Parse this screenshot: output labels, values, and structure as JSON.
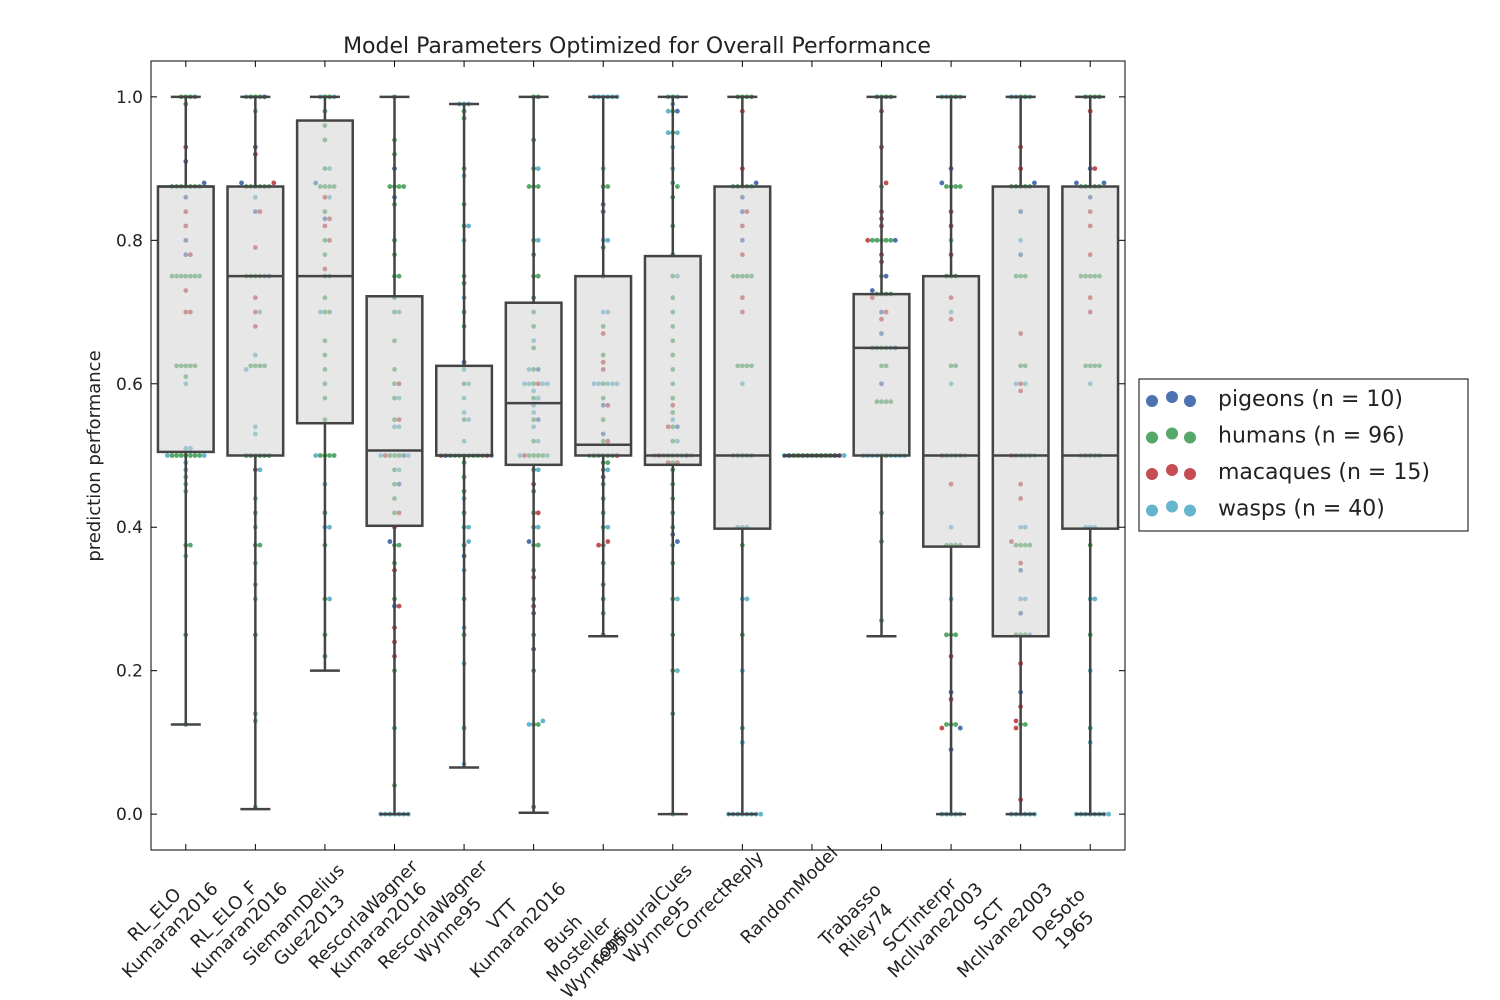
{
  "chart_data": {
    "type": "box",
    "title": "Model Parameters Optimized for Overall Performance",
    "xlabel": "",
    "ylabel": "prediction performance",
    "ylim": [
      -0.05,
      1.05
    ],
    "yticks": [
      0.0,
      0.2,
      0.4,
      0.6,
      0.8,
      1.0
    ],
    "ytick_labels": [
      "0.0",
      "0.2",
      "0.4",
      "0.6",
      "0.8",
      "1.0"
    ],
    "grid": false,
    "legend_position": "right, outside",
    "categories": [
      "RL_ELO\nKumaran2016",
      "RL_ELO_F\nKumaran2016",
      "SiemannDelius\nGuez2013",
      "RescorlaWagner\nKumaran2016",
      "RescorlaWagner\nWynne95",
      "VTT\nKumaran2016",
      "Bush\nMosteller\nWynne95",
      "configuralCues\nWynne95",
      "CorrectReply",
      "RandomModel",
      "Trabasso\nRiley74",
      "SCTinterpr\nMcIlvane2003",
      "SCT\nMcIlvane2003",
      "DeSoto\n1965"
    ],
    "boxes": [
      {
        "min": 0.125,
        "q1": 0.505,
        "median": 0.875,
        "q3": 0.875,
        "max": 1.0
      },
      {
        "min": 0.007,
        "q1": 0.5,
        "median": 0.75,
        "q3": 0.875,
        "max": 1.0
      },
      {
        "min": 0.2,
        "q1": 0.545,
        "median": 0.75,
        "q3": 0.967,
        "max": 1.0
      },
      {
        "min": 0.0,
        "q1": 0.402,
        "median": 0.507,
        "q3": 0.722,
        "max": 1.0
      },
      {
        "min": 0.065,
        "q1": 0.5,
        "median": 0.5,
        "q3": 0.625,
        "max": 0.99
      },
      {
        "min": 0.002,
        "q1": 0.487,
        "median": 0.573,
        "q3": 0.713,
        "max": 1.0
      },
      {
        "min": 0.248,
        "q1": 0.5,
        "median": 0.515,
        "q3": 0.75,
        "max": 1.0
      },
      {
        "min": 0.0,
        "q1": 0.487,
        "median": 0.5,
        "q3": 0.778,
        "max": 1.0
      },
      {
        "min": 0.0,
        "q1": 0.398,
        "median": 0.5,
        "q3": 0.875,
        "max": 1.0
      },
      {
        "min": 0.5,
        "q1": 0.5,
        "median": 0.5,
        "q3": 0.5,
        "max": 0.5
      },
      {
        "min": 0.248,
        "q1": 0.5,
        "median": 0.65,
        "q3": 0.725,
        "max": 1.0
      },
      {
        "min": 0.0,
        "q1": 0.373,
        "median": 0.5,
        "q3": 0.75,
        "max": 1.0
      },
      {
        "min": 0.0,
        "q1": 0.248,
        "median": 0.5,
        "q3": 0.875,
        "max": 1.0
      },
      {
        "min": 0.0,
        "q1": 0.398,
        "median": 0.5,
        "q3": 0.875,
        "max": 1.0
      }
    ],
    "series": [
      {
        "name": "pigeons (n = 10)",
        "color": "#4c72b0"
      },
      {
        "name": "humans (n = 96)",
        "color": "#55a868"
      },
      {
        "name": "macaques (n = 15)",
        "color": "#c44e52"
      },
      {
        "name": "wasps (n = 40)",
        "color": "#64b5cd"
      }
    ],
    "swarm_points": [
      {
        "model": 0,
        "human": [
          1.0,
          1.0,
          1.0,
          1.0,
          0.99,
          0.875,
          0.875,
          0.875,
          0.875,
          0.875,
          0.875,
          0.75,
          0.75,
          0.75,
          0.75,
          0.75,
          0.75,
          0.625,
          0.625,
          0.625,
          0.625,
          0.625,
          0.5,
          0.5,
          0.5,
          0.5,
          0.5,
          0.5,
          0.5,
          0.375,
          0.375,
          0.25,
          0.875,
          0.75,
          0.61,
          0.125
        ],
        "pigeon": [
          0.91,
          0.88,
          0.8,
          0.78,
          0.86
        ],
        "macaque": [
          0.93,
          0.84,
          0.82,
          0.78,
          0.73,
          0.7,
          0.7
        ],
        "wasp": [
          0.6,
          0.51,
          0.51,
          0.5,
          0.5,
          0.49,
          0.48,
          0.47,
          0.46,
          0.45,
          0.36
        ]
      },
      {
        "model": 1,
        "human": [
          1.0,
          1.0,
          1.0,
          0.875,
          0.875,
          0.875,
          0.875,
          0.875,
          0.75,
          0.75,
          0.75,
          0.75,
          0.75,
          0.625,
          0.625,
          0.625,
          0.625,
          0.5,
          0.5,
          0.5,
          0.5,
          0.5,
          0.5,
          0.375,
          0.375,
          0.25,
          0.875
        ],
        "pigeon": [
          1.0,
          0.93,
          0.88,
          0.84,
          0.75
        ],
        "macaque": [
          0.92,
          0.88,
          0.84,
          0.79,
          0.72,
          0.7,
          0.68,
          0.48
        ],
        "wasp": [
          1.0,
          0.98,
          0.86,
          0.7,
          0.64,
          0.62,
          0.54,
          0.53,
          0.48,
          0.44,
          0.42,
          0.4,
          0.35,
          0.32,
          0.3,
          0.14,
          0.13,
          0.01
        ]
      },
      {
        "model": 2,
        "human": [
          1.0,
          1.0,
          0.98,
          0.96,
          0.94,
          0.9,
          0.875,
          0.875,
          0.875,
          0.875,
          0.84,
          0.8,
          0.78,
          0.75,
          0.75,
          0.72,
          0.7,
          0.7,
          0.66,
          0.64,
          0.62,
          0.6,
          0.58,
          0.55,
          0.5,
          0.5,
          0.5,
          0.5,
          0.42,
          0.375,
          0.3,
          0.25,
          0.22
        ],
        "pigeon": [
          0.88,
          0.83
        ],
        "macaque": [
          0.86,
          0.83,
          0.82,
          0.8,
          0.76
        ],
        "wasp": [
          1.0,
          1.0,
          0.9,
          0.86,
          0.7,
          0.5,
          0.46,
          0.4,
          0.4,
          0.3
        ]
      },
      {
        "model": 3,
        "human": [
          1.0,
          0.94,
          0.92,
          0.875,
          0.875,
          0.875,
          0.875,
          0.85,
          0.8,
          0.78,
          0.75,
          0.75,
          0.72,
          0.7,
          0.66,
          0.62,
          0.6,
          0.58,
          0.55,
          0.5,
          0.5,
          0.5,
          0.48,
          0.46,
          0.44,
          0.42,
          0.375,
          0.375,
          0.35,
          0.3,
          0.2,
          0.12,
          0.04
        ],
        "pigeon": [
          0.9,
          0.86,
          0.5,
          0.46,
          0.38,
          0.29
        ],
        "macaque": [
          0.6,
          0.55,
          0.5,
          0.42,
          0.4,
          0.34,
          0.29,
          0.26,
          0.24,
          0.22
        ],
        "wasp": [
          0.7,
          0.58,
          0.54,
          0.54,
          0.5,
          0.48,
          0.5,
          0.0,
          0.0,
          0.0,
          0.0,
          0.0,
          0.0,
          0.0
        ]
      },
      {
        "model": 4,
        "human": [
          0.98,
          0.97,
          0.9,
          0.85,
          0.82,
          0.75,
          0.74,
          0.7,
          0.68,
          0.6,
          0.55,
          0.5,
          0.5,
          0.5,
          0.5,
          0.5,
          0.5,
          0.5,
          0.5,
          0.49,
          0.47,
          0.45,
          0.42,
          0.4,
          0.375,
          0.3,
          0.25,
          0.12
        ],
        "pigeon": [
          0.63,
          0.5,
          0.36
        ],
        "macaque": [
          0.5,
          0.5
        ],
        "wasp": [
          0.99,
          0.99,
          0.99,
          0.89,
          0.82,
          0.8,
          0.72,
          0.62,
          0.6,
          0.58,
          0.56,
          0.55,
          0.52,
          0.5,
          0.44,
          0.4,
          0.38,
          0.34,
          0.26,
          0.21,
          0.07
        ]
      },
      {
        "model": 5,
        "human": [
          1.0,
          1.0,
          0.94,
          0.9,
          0.875,
          0.875,
          0.875,
          0.8,
          0.78,
          0.75,
          0.75,
          0.72,
          0.7,
          0.68,
          0.65,
          0.62,
          0.6,
          0.58,
          0.55,
          0.52,
          0.5,
          0.5,
          0.5,
          0.5,
          0.48,
          0.45,
          0.42,
          0.4,
          0.375,
          0.375,
          0.34,
          0.3,
          0.25,
          0.2,
          0.125,
          0.125,
          0.01
        ],
        "pigeon": [
          0.62,
          0.55,
          0.38,
          0.28,
          0.23
        ],
        "macaque": [
          0.6,
          0.5,
          0.46,
          0.42,
          0.33,
          0.29
        ],
        "wasp": [
          0.9,
          0.8,
          0.66,
          0.62,
          0.6,
          0.6,
          0.6,
          0.6,
          0.59,
          0.58,
          0.57,
          0.56,
          0.54,
          0.52,
          0.5,
          0.5,
          0.48,
          0.4,
          0.125,
          0.13
        ]
      },
      {
        "model": 6,
        "human": [
          0.875,
          0.875,
          0.79,
          0.75,
          0.68,
          0.64,
          0.6,
          0.58,
          0.55,
          0.52,
          0.5,
          0.5,
          0.5,
          0.5,
          0.5,
          0.49,
          0.49,
          0.48,
          0.46,
          0.44,
          0.42,
          0.4,
          0.375,
          0.35,
          0.32,
          0.3,
          0.28,
          0.25
        ],
        "pigeon": [
          0.85,
          0.84,
          0.57,
          0.53,
          0.47
        ],
        "macaque": [
          0.67,
          0.63,
          0.62,
          0.57,
          0.52,
          0.5,
          0.38,
          0.375
        ],
        "wasp": [
          1.0,
          1.0,
          1.0,
          1.0,
          1.0,
          1.0,
          0.9,
          0.8,
          0.8,
          0.7,
          0.7,
          0.6,
          0.6,
          0.6,
          0.6,
          0.6,
          0.5,
          0.48,
          0.4
        ]
      },
      {
        "model": 7,
        "human": [
          1.0,
          0.98,
          0.95,
          0.88,
          0.875,
          0.86,
          0.82,
          0.78,
          0.75,
          0.72,
          0.7,
          0.68,
          0.66,
          0.64,
          0.62,
          0.6,
          0.58,
          0.56,
          0.54,
          0.52,
          0.5,
          0.5,
          0.5,
          0.5,
          0.5,
          0.49,
          0.48,
          0.46,
          0.44,
          0.42,
          0.4,
          0.375,
          0.35,
          0.3,
          0.25,
          0.2,
          0.14
        ],
        "pigeon": [
          0.98,
          0.54,
          0.5,
          0.39,
          0.38
        ],
        "macaque": [
          0.57,
          0.54,
          0.5,
          0.49,
          0.49
        ],
        "wasp": [
          1.0,
          1.0,
          0.99,
          0.98,
          0.95,
          0.95,
          0.93,
          0.9,
          0.75,
          0.55,
          0.52,
          0.5,
          0.5,
          0.3,
          0.2,
          0.0
        ]
      },
      {
        "model": 8,
        "human": [
          1.0,
          1.0,
          1.0,
          1.0,
          0.875,
          0.875,
          0.875,
          0.875,
          0.875,
          0.75,
          0.75,
          0.75,
          0.75,
          0.75,
          0.625,
          0.625,
          0.625,
          0.625,
          0.5,
          0.5,
          0.5,
          0.5,
          0.5,
          0.375,
          0.25,
          0.12
        ],
        "pigeon": [
          0.88,
          0.86,
          0.84,
          0.8
        ],
        "macaque": [
          0.98,
          0.9,
          0.84,
          0.82,
          0.78,
          0.72,
          0.7
        ],
        "wasp": [
          0.6,
          0.4,
          0.4,
          0.4,
          0.3,
          0.3,
          0.2,
          0.1,
          0.0,
          0.0,
          0.0,
          0.0,
          0.0,
          0.0,
          0.0,
          0.0
        ]
      },
      {
        "model": 9,
        "human": [
          0.5,
          0.5,
          0.5,
          0.5,
          0.5,
          0.5,
          0.5,
          0.5,
          0.5
        ],
        "pigeon": [
          0.5,
          0.5
        ],
        "macaque": [
          0.5
        ],
        "wasp": [
          0.5,
          0.5
        ]
      },
      {
        "model": 10,
        "human": [
          1.0,
          1.0,
          1.0,
          1.0,
          0.875,
          0.8,
          0.8,
          0.8,
          0.8,
          0.8,
          0.75,
          0.725,
          0.725,
          0.725,
          0.725,
          0.65,
          0.65,
          0.65,
          0.65,
          0.65,
          0.625,
          0.625,
          0.575,
          0.575,
          0.575,
          0.575,
          0.5,
          0.5,
          0.42,
          0.38,
          0.27
        ],
        "pigeon": [
          0.8,
          0.75,
          0.73,
          0.7,
          0.67,
          0.65,
          0.6
        ],
        "macaque": [
          0.98,
          0.93,
          0.88,
          0.84,
          0.83,
          0.82,
          0.8,
          0.78,
          0.77,
          0.72,
          0.7,
          0.69
        ],
        "wasp": [
          0.5,
          0.5,
          0.5,
          0.5,
          0.5,
          0.5,
          0.5,
          0.5
        ]
      },
      {
        "model": 11,
        "human": [
          1.0,
          1.0,
          0.875,
          0.875,
          0.875,
          0.875,
          0.75,
          0.75,
          0.75,
          0.625,
          0.625,
          0.5,
          0.5,
          0.5,
          0.5,
          0.375,
          0.375,
          0.375,
          0.375,
          0.25,
          0.25,
          0.25,
          0.125,
          0.125,
          0.125
        ],
        "pigeon": [
          0.9,
          0.88,
          0.17,
          0.12,
          0.09
        ],
        "macaque": [
          0.84,
          0.82,
          0.78,
          0.72,
          0.69,
          0.5,
          0.46,
          0.22,
          0.16,
          0.12
        ],
        "wasp": [
          1.0,
          1.0,
          1.0,
          0.8,
          0.7,
          0.6,
          0.5,
          0.4,
          0.3,
          0.0,
          0.0,
          0.0,
          0.0,
          0.0
        ]
      },
      {
        "model": 12,
        "human": [
          1.0,
          1.0,
          0.875,
          0.875,
          0.875,
          0.875,
          0.875,
          0.75,
          0.75,
          0.75,
          0.625,
          0.625,
          0.5,
          0.5,
          0.5,
          0.5,
          0.375,
          0.375,
          0.375,
          0.375,
          0.25,
          0.25,
          0.25,
          0.125,
          0.125
        ],
        "pigeon": [
          0.88,
          0.84,
          0.78,
          0.34,
          0.28,
          0.17
        ],
        "macaque": [
          0.93,
          0.9,
          0.67,
          0.6,
          0.59,
          0.5,
          0.46,
          0.44,
          0.38,
          0.35,
          0.21,
          0.15,
          0.13,
          0.12,
          0.02
        ],
        "wasp": [
          1.0,
          1.0,
          1.0,
          0.8,
          0.6,
          0.6,
          0.5,
          0.4,
          0.4,
          0.3,
          0.3,
          0.25,
          0.0,
          0.0,
          0.0,
          0.0,
          0.0,
          0.0
        ]
      },
      {
        "model": 13,
        "human": [
          1.0,
          1.0,
          1.0,
          1.0,
          0.875,
          0.875,
          0.875,
          0.875,
          0.875,
          0.75,
          0.75,
          0.75,
          0.75,
          0.75,
          0.625,
          0.625,
          0.625,
          0.625,
          0.5,
          0.5,
          0.5,
          0.5,
          0.5,
          0.375,
          0.25,
          0.12
        ],
        "pigeon": [
          0.9,
          0.88,
          0.86,
          0.88
        ],
        "macaque": [
          0.98,
          0.9,
          0.84,
          0.82,
          0.78,
          0.72,
          0.7
        ],
        "wasp": [
          0.6,
          0.4,
          0.4,
          0.4,
          0.3,
          0.3,
          0.2,
          0.1,
          0.0,
          0.0,
          0.0,
          0.0,
          0.0,
          0.0,
          0.0,
          0.0
        ]
      }
    ]
  }
}
